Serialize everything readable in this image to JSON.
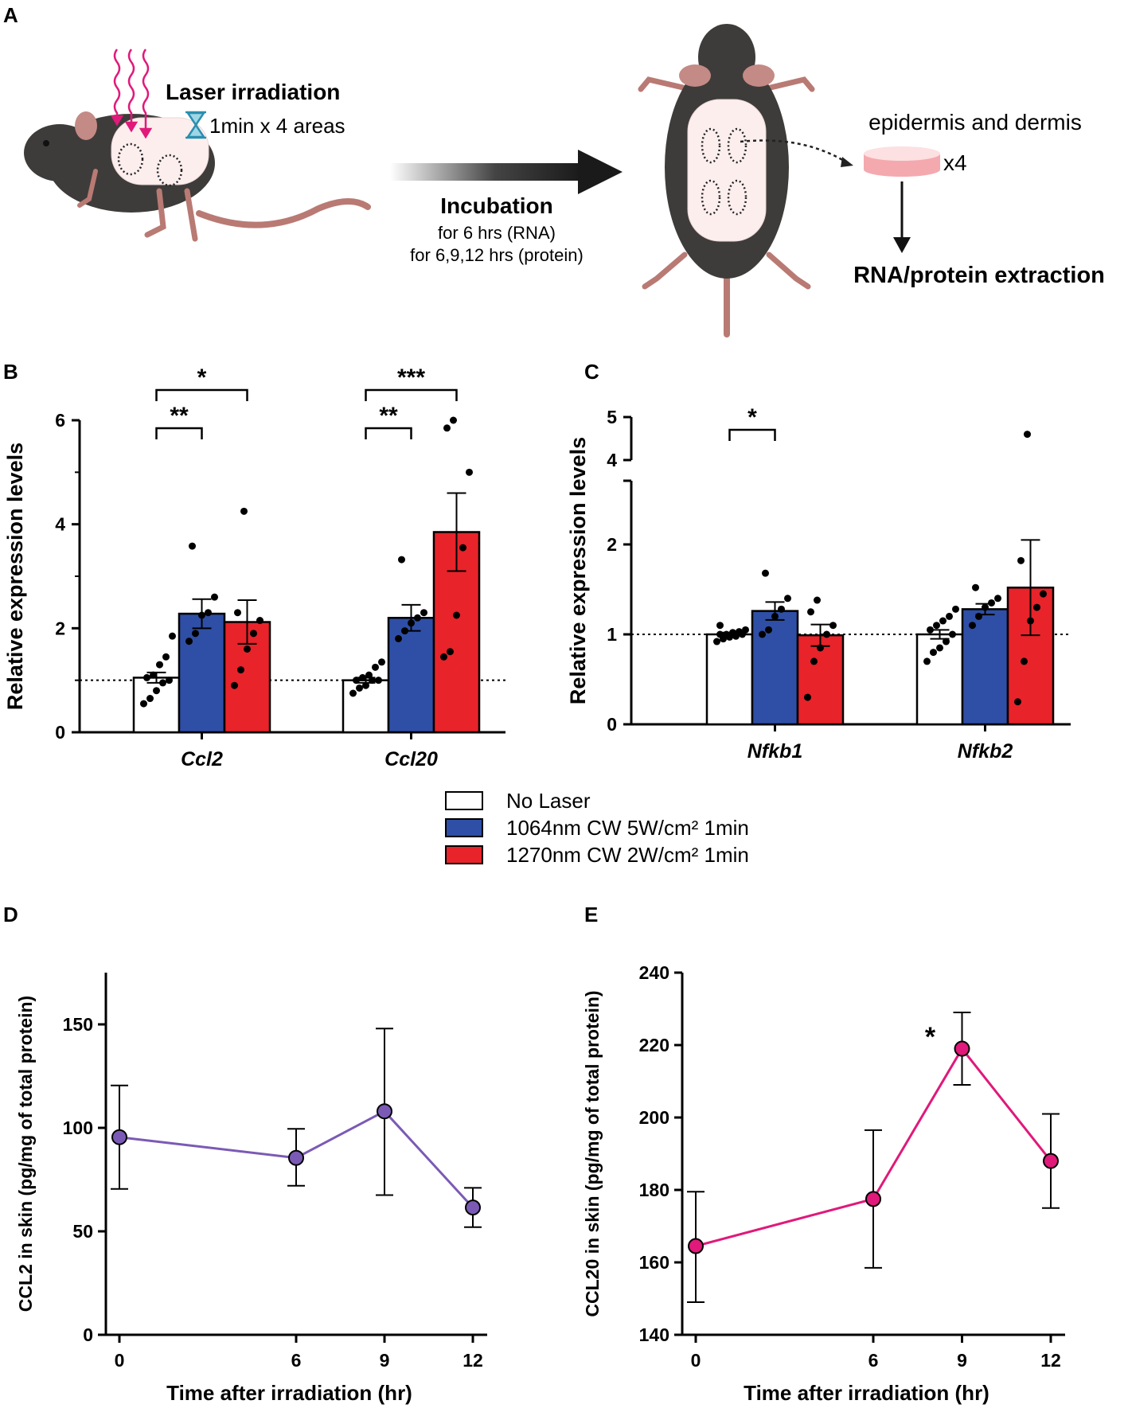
{
  "panels": {
    "a": "A",
    "b": "B",
    "c": "C",
    "d": "D",
    "e": "E"
  },
  "schematic": {
    "laser_title": "Laser irradiation",
    "laser_time": "1min x 4 areas",
    "incubation_title": "Incubation",
    "incubation_rna": "for 6 hrs (RNA)",
    "incubation_protein": "for 6,9,12 hrs (protein)",
    "tissue": "epidermis and dermis",
    "multiplier": "x4",
    "extraction": "RNA/protein extraction"
  },
  "legend": {
    "items": [
      {
        "label": "No Laser",
        "color": "#ffffff"
      },
      {
        "label": "1064nm CW 5W/cm² 1min",
        "color": "#2f4fa6"
      },
      {
        "label": "1270nm CW 2W/cm² 1min",
        "color": "#e8232a"
      }
    ]
  },
  "colors": {
    "no_laser": "#ffffff",
    "nm1064": "#2f4fa6",
    "nm1270": "#e8232a",
    "ccl2_line": "#7b5ab5",
    "ccl20_line": "#e0197a"
  },
  "chart_data": [
    {
      "id": "B",
      "type": "bar",
      "ylabel": "Relative expression levels",
      "ylim": [
        0,
        6
      ],
      "yticks": [
        "0",
        "2",
        "4",
        "6"
      ],
      "reference_line": 1,
      "categories": [
        "Ccl2",
        "Ccl20"
      ],
      "series": [
        {
          "name": "No Laser",
          "values": [
            1.05,
            1.0
          ],
          "sem": [
            0.1,
            0.05
          ],
          "points": [
            [
              0.55,
              0.65,
              0.8,
              0.95,
              1.0,
              1.05,
              1.1,
              1.3,
              1.45,
              1.85
            ],
            [
              0.75,
              0.85,
              0.9,
              1.0,
              1.0,
              1.0,
              1.05,
              1.1,
              1.25,
              1.35
            ]
          ]
        },
        {
          "name": "1064nm CW 5W/cm² 1min",
          "values": [
            2.28,
            2.2
          ],
          "sem": [
            0.28,
            0.25
          ],
          "points": [
            [
              1.75,
              1.9,
              2.25,
              2.3,
              2.6,
              3.58
            ],
            [
              1.8,
              1.95,
              2.1,
              2.2,
              2.3,
              3.32
            ]
          ]
        },
        {
          "name": "1270nm CW 2W/cm² 1min",
          "values": [
            2.12,
            3.85
          ],
          "sem": [
            0.42,
            0.75
          ],
          "points": [
            [
              0.9,
              1.2,
              1.6,
              1.9,
              2.15,
              2.3,
              4.25
            ],
            [
              1.45,
              1.55,
              2.25,
              3.55,
              5.0,
              5.85,
              6.0
            ]
          ]
        }
      ],
      "significance": [
        {
          "label": "**",
          "category": "Ccl2",
          "from": 0,
          "to": 1
        },
        {
          "label": "*",
          "category": "Ccl2",
          "from": 0,
          "to": 2
        },
        {
          "label": "**",
          "category": "Ccl20",
          "from": 0,
          "to": 1
        },
        {
          "label": "***",
          "category": "Ccl20",
          "from": 0,
          "to": 2
        }
      ]
    },
    {
      "id": "C",
      "type": "bar",
      "ylabel": "Relative expression levels",
      "ylim": [
        0,
        5
      ],
      "axis_break": [
        2.5,
        4
      ],
      "yticks": [
        "0",
        "1",
        "2",
        "4",
        "5"
      ],
      "reference_line": 1,
      "categories": [
        "Nfkb1",
        "Nfkb2"
      ],
      "series": [
        {
          "name": "No Laser",
          "values": [
            1.0,
            1.0
          ],
          "sem": [
            0.02,
            0.05
          ],
          "points": [
            [
              0.92,
              0.95,
              0.97,
              0.98,
              1.0,
              1.0,
              1.0,
              1.02,
              1.03,
              1.05,
              1.1
            ],
            [
              0.7,
              0.8,
              0.85,
              0.92,
              1.0,
              1.05,
              1.1,
              1.15,
              1.2,
              1.28
            ]
          ]
        },
        {
          "name": "1064nm CW 5W/cm² 1min",
          "values": [
            1.26,
            1.28
          ],
          "sem": [
            0.1,
            0.06
          ],
          "points": [
            [
              1.0,
              1.05,
              1.2,
              1.28,
              1.4,
              1.68
            ],
            [
              1.1,
              1.2,
              1.3,
              1.35,
              1.4,
              1.52
            ]
          ]
        },
        {
          "name": "1270nm CW 2W/cm² 1min",
          "values": [
            0.99,
            1.52
          ],
          "sem": [
            0.12,
            0.53
          ],
          "points": [
            [
              0.3,
              0.7,
              0.85,
              1.0,
              1.1,
              1.25,
              1.38
            ],
            [
              0.25,
              0.7,
              1.15,
              1.3,
              1.45,
              1.82,
              4.6
            ]
          ]
        }
      ],
      "significance": [
        {
          "label": "*",
          "category": "Nfkb1",
          "from": 0,
          "to": 1
        }
      ]
    },
    {
      "id": "D",
      "type": "line",
      "xlabel": "Time after irradiation (hr)",
      "ylabel": "CCL2 in skin (pg/mg of total protein)",
      "x": [
        0,
        6,
        9,
        12
      ],
      "y": [
        95.5,
        85.5,
        108,
        61.5
      ],
      "err_low": [
        70.5,
        72,
        67.5,
        52
      ],
      "err_high": [
        120.5,
        99.5,
        148,
        71
      ],
      "ylim": [
        0,
        175
      ],
      "yticks": [
        "0",
        "50",
        "100",
        "150"
      ],
      "xticks": [
        "0",
        "6",
        "9",
        "12"
      ]
    },
    {
      "id": "E",
      "type": "line",
      "xlabel": "Time after irradiation (hr)",
      "ylabel": "CCL20 in skin (pg/mg of total protein)",
      "x": [
        0,
        6,
        9,
        12
      ],
      "y": [
        164.5,
        177.5,
        219,
        188
      ],
      "err_low": [
        149,
        158.5,
        209,
        175
      ],
      "err_high": [
        179.5,
        196.5,
        229,
        201
      ],
      "ylim": [
        140,
        240
      ],
      "yticks": [
        "140",
        "160",
        "180",
        "200",
        "220",
        "240"
      ],
      "xticks": [
        "0",
        "6",
        "9",
        "12"
      ],
      "significance": [
        {
          "label": "*",
          "x": 9
        }
      ]
    }
  ]
}
